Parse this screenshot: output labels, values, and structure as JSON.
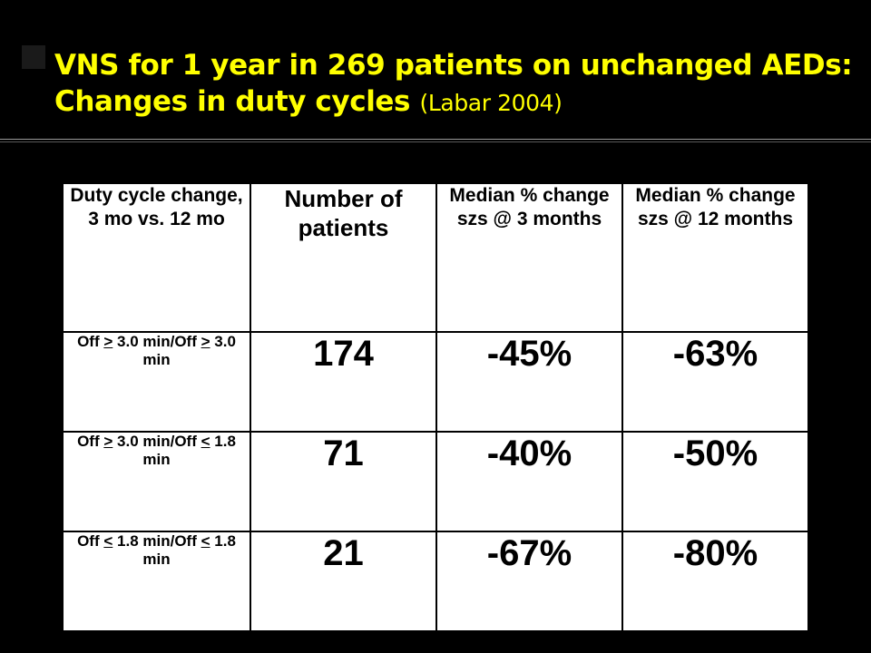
{
  "slide": {
    "title_main": "VNS for 1 year in 269 patients on unchanged AEDs:  Changes in duty cycles",
    "title_suffix": "(Labar 2004)"
  },
  "table": {
    "headers": [
      "Duty cycle change, 3 mo vs. 12 mo",
      "Number of patients",
      "Median % change szs @ 3 months",
      "Median % change szs @ 12 months"
    ],
    "rows": [
      {
        "label": {
          "off_word": "Off",
          "sym1": ">",
          "num1": "3.0 min/Off",
          "sym2": ">",
          "num2": "3.0 min"
        },
        "patients": "174",
        "change_3mo": "-45%",
        "change_12mo": "-63%"
      },
      {
        "label": {
          "off_word": "Off",
          "sym1": ">",
          "num1": "3.0 min/Off",
          "sym2": "<",
          "num2": "1.8 min"
        },
        "patients": "71",
        "change_3mo": "-40%",
        "change_12mo": "-50%"
      },
      {
        "label": {
          "off_word": "Off",
          "sym1": "<",
          "num1": "1.8 min/Off",
          "sym2": "<",
          "num2": "1.8 min"
        },
        "patients": "21",
        "change_3mo": "-67%",
        "change_12mo": "-80%"
      }
    ]
  },
  "colors": {
    "background": "#000000",
    "title_text": "#ffff00",
    "table_background": "#ffffff",
    "table_text": "#000000"
  }
}
